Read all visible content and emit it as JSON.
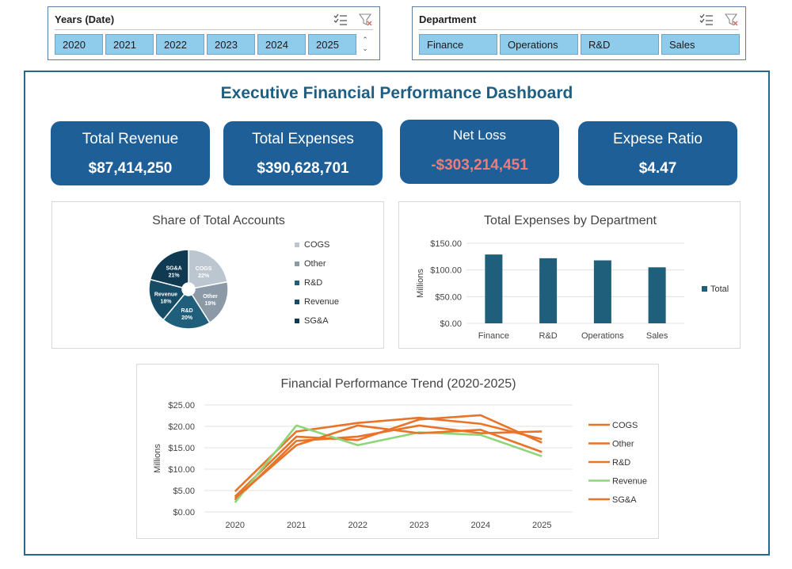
{
  "slicers": {
    "years": {
      "title": "Years (Date)",
      "items": [
        "2020",
        "2021",
        "2022",
        "2023",
        "2024",
        "2025"
      ]
    },
    "department": {
      "title": "Department",
      "items": [
        "Finance",
        "Operations",
        "R&D",
        "Sales"
      ]
    }
  },
  "dashboard": {
    "title": "Executive Financial Performance Dashboard",
    "kpis": [
      {
        "label": "Total Revenue",
        "value": "$87,414,250"
      },
      {
        "label": "Total Expenses",
        "value": "$390,628,701"
      },
      {
        "label": "Net Loss",
        "value": "-$303,214,451"
      },
      {
        "label": "Expese Ratio",
        "value": "$4.47"
      }
    ]
  },
  "colors": {
    "accent": "#1f5f98",
    "frame": "#27688e",
    "slicer_item": "#8fcbea",
    "negative": "#f07b7b",
    "bar": "#1f5f7c",
    "line_orange": "#e8742a",
    "line_green": "#8ed57b"
  },
  "chart_data": [
    {
      "type": "pie",
      "title": "Share of Total Accounts",
      "slices": [
        {
          "label": "COGS",
          "pct": 22,
          "color": "#bcc6d0"
        },
        {
          "label": "Other",
          "pct": 19,
          "color": "#8c9aa8"
        },
        {
          "label": "R&D",
          "pct": 20,
          "color": "#1f5f7c"
        },
        {
          "label": "Revenue",
          "pct": 18,
          "color": "#164c66"
        },
        {
          "label": "SG&A",
          "pct": 21,
          "color": "#0f3a52"
        }
      ],
      "legend": "right"
    },
    {
      "type": "bar",
      "title": "Total Expenses by Department",
      "categories": [
        "Finance",
        "R&D",
        "Operations",
        "Sales"
      ],
      "series": [
        {
          "name": "Total",
          "values": [
            129,
            122,
            118,
            105
          ]
        }
      ],
      "ylabel": "Millions",
      "ylim": [
        0,
        150
      ],
      "yticks": [
        "$0.00",
        "$50.00",
        "$100.00",
        "$150.00"
      ],
      "grid": true,
      "legend": "right"
    },
    {
      "type": "line",
      "title": "Financial Performance Trend (2020-2025)",
      "x": [
        "2020",
        "2021",
        "2022",
        "2023",
        "2024",
        "2025"
      ],
      "series": [
        {
          "name": "COGS",
          "values": [
            4.8,
            18.8,
            20.8,
            22.0,
            20.6,
            17.0
          ],
          "color": "#e8742a"
        },
        {
          "name": "Other",
          "values": [
            3.6,
            17.6,
            16.8,
            21.6,
            22.6,
            16.2
          ],
          "color": "#e8742a"
        },
        {
          "name": "R&D",
          "values": [
            2.8,
            16.6,
            17.6,
            20.2,
            18.4,
            18.8
          ],
          "color": "#e8742a"
        },
        {
          "name": "Revenue",
          "values": [
            2.2,
            20.2,
            15.6,
            18.6,
            18.0,
            13.0
          ],
          "color": "#8ed57b"
        },
        {
          "name": "SG&A",
          "values": [
            3.2,
            15.6,
            20.2,
            18.4,
            19.2,
            14.0
          ],
          "color": "#e8742a"
        }
      ],
      "ylabel": "Millions",
      "ylim": [
        0,
        25
      ],
      "yticks": [
        "$0.00",
        "$5.00",
        "$10.00",
        "$15.00",
        "$20.00",
        "$25.00"
      ],
      "grid": true,
      "legend": "right"
    }
  ]
}
